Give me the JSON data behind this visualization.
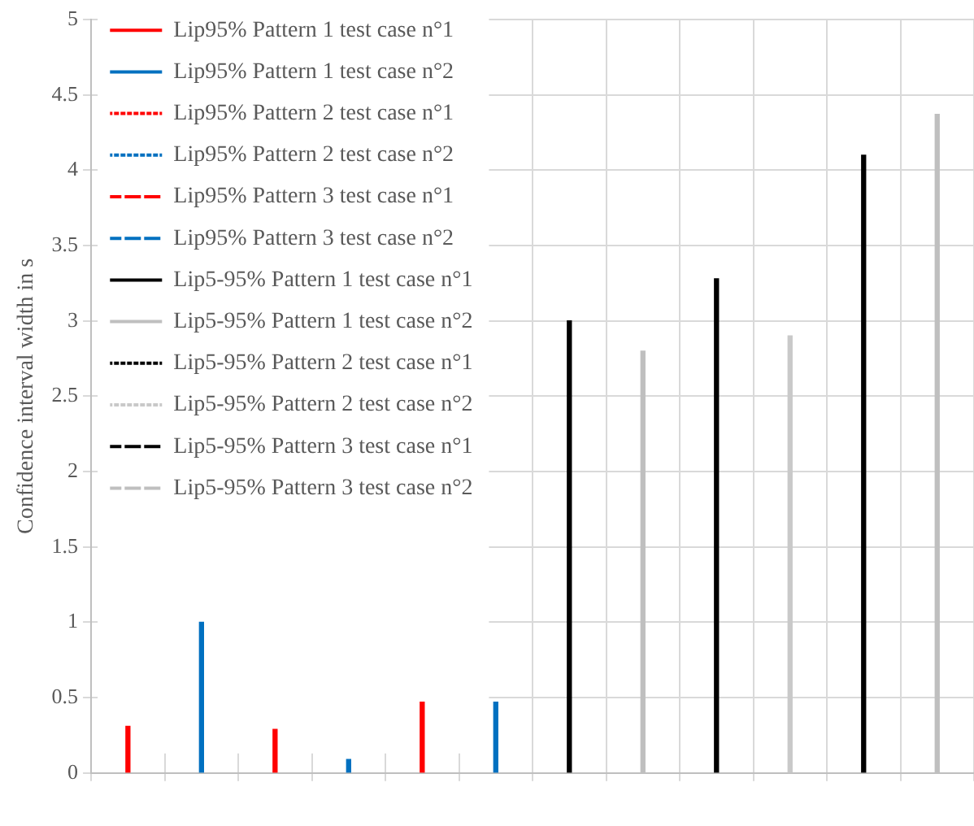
{
  "chart_data": {
    "type": "bar",
    "ylabel": "Confidence interval width in s",
    "categories": [
      null,
      null,
      null,
      null,
      null,
      null,
      null,
      null,
      null,
      null,
      null,
      null
    ],
    "ylim": [
      0,
      5
    ],
    "yticks": [
      0,
      0.5,
      1,
      1.5,
      2,
      2.5,
      3,
      3.5,
      4,
      4.5,
      5
    ],
    "grid": true,
    "legend": "top left",
    "series": [
      {
        "name": "Lip95% Pattern 1 test case n°1",
        "color": "#ff0000",
        "line_style": "solid",
        "values": [
          0.31,
          null,
          null,
          null,
          null,
          null,
          null,
          null,
          null,
          null,
          null,
          null
        ]
      },
      {
        "name": "Lip95% Pattern 1 test case n°2",
        "color": "#0070c0",
        "line_style": "solid",
        "values": [
          null,
          1.0,
          null,
          null,
          null,
          null,
          null,
          null,
          null,
          null,
          null,
          null
        ]
      },
      {
        "name": "Lip95% Pattern 2 test case n°1",
        "color": "#ff0000",
        "line_style": "dotted",
        "values": [
          null,
          null,
          0.29,
          null,
          null,
          null,
          null,
          null,
          null,
          null,
          null,
          null
        ]
      },
      {
        "name": "Lip95% Pattern 2 test case n°2",
        "color": "#0070c0",
        "line_style": "dotted",
        "values": [
          null,
          null,
          null,
          0.09,
          null,
          null,
          null,
          null,
          null,
          null,
          null,
          null
        ]
      },
      {
        "name": "Lip95% Pattern 3 test case n°1",
        "color": "#ff0000",
        "line_style": "dashed",
        "values": [
          null,
          null,
          null,
          null,
          0.47,
          null,
          null,
          null,
          null,
          null,
          null,
          null
        ]
      },
      {
        "name": "Lip95% Pattern 3 test case n°2",
        "color": "#0070c0",
        "line_style": "dashed",
        "values": [
          null,
          null,
          null,
          null,
          null,
          0.47,
          null,
          null,
          null,
          null,
          null,
          null
        ]
      },
      {
        "name": "Lip5-95% Pattern 1 test case n°1",
        "color": "#000000",
        "line_style": "solid",
        "values": [
          null,
          null,
          null,
          null,
          null,
          null,
          3.0,
          null,
          null,
          null,
          null,
          null
        ]
      },
      {
        "name": "Lip5-95% Pattern 1 test case n°2",
        "color": "#bfbfbf",
        "line_style": "solid",
        "values": [
          null,
          null,
          null,
          null,
          null,
          null,
          null,
          2.8,
          null,
          null,
          null,
          null
        ]
      },
      {
        "name": "Lip5-95% Pattern 2 test case n°1",
        "color": "#000000",
        "line_style": "dotted",
        "values": [
          null,
          null,
          null,
          null,
          null,
          null,
          null,
          null,
          3.28,
          null,
          null,
          null
        ]
      },
      {
        "name": "Lip5-95% Pattern 2 test case n°2",
        "color": "#c9c9c9",
        "line_style": "dotted",
        "values": [
          null,
          null,
          null,
          null,
          null,
          null,
          null,
          null,
          null,
          2.9,
          null,
          null
        ]
      },
      {
        "name": "Lip5-95% Pattern 3 test case n°1",
        "color": "#000000",
        "line_style": "dashed",
        "values": [
          null,
          null,
          null,
          null,
          null,
          null,
          null,
          null,
          null,
          null,
          4.1,
          null
        ]
      },
      {
        "name": "Lip5-95% Pattern 3 test case n°2",
        "color": "#bfbfbf",
        "line_style": "dashed",
        "values": [
          null,
          null,
          null,
          null,
          null,
          null,
          null,
          null,
          null,
          null,
          null,
          4.37
        ]
      }
    ]
  }
}
